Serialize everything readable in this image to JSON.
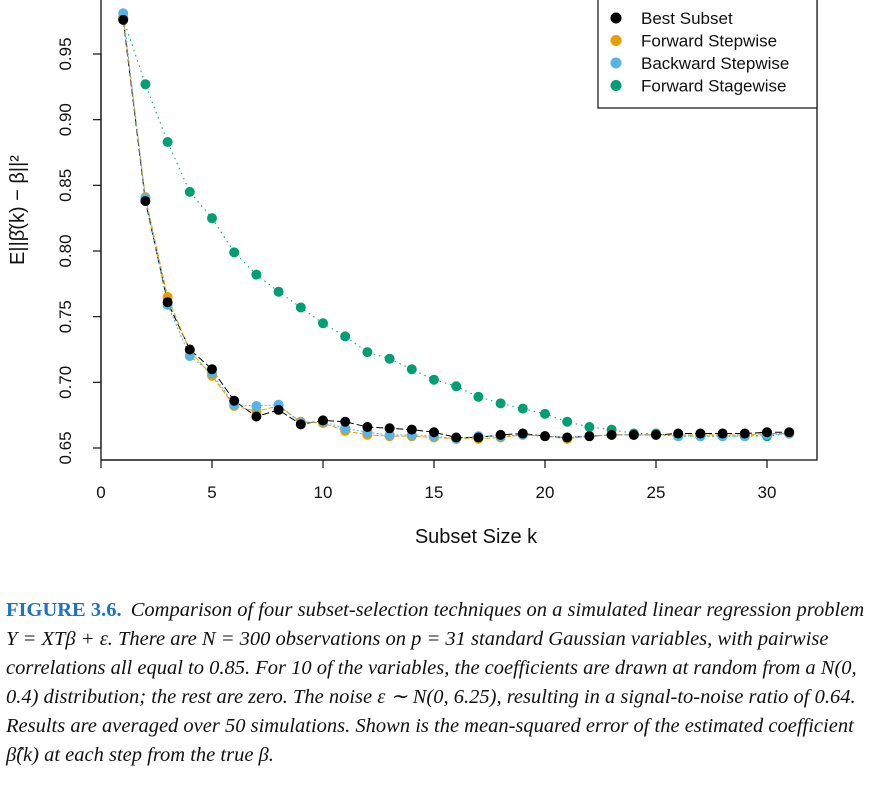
{
  "chart_data": {
    "type": "scatter",
    "xlabel": "Subset Size k",
    "ylabel": "E||β̂(k) − β||²",
    "xlim": [
      0,
      32
    ],
    "ylim": [
      0.65,
      0.98
    ],
    "x_ticks": [
      0,
      5,
      10,
      15,
      20,
      25,
      30
    ],
    "y_ticks": [
      0.65,
      0.7,
      0.75,
      0.8,
      0.85,
      0.9,
      0.95
    ],
    "legend_position": "top-right",
    "grid": false,
    "x": [
      1,
      2,
      3,
      4,
      5,
      6,
      7,
      8,
      9,
      10,
      11,
      12,
      13,
      14,
      15,
      16,
      17,
      18,
      19,
      20,
      21,
      22,
      23,
      24,
      25,
      26,
      27,
      28,
      29,
      30,
      31
    ],
    "series": [
      {
        "name": "Best Subset",
        "color": "#000000",
        "values": [
          0.976,
          0.838,
          0.761,
          0.725,
          0.71,
          0.686,
          0.674,
          0.679,
          0.668,
          0.671,
          0.67,
          0.666,
          0.665,
          0.664,
          0.662,
          0.658,
          0.658,
          0.66,
          0.661,
          0.659,
          0.658,
          0.659,
          0.66,
          0.66,
          0.66,
          0.661,
          0.661,
          0.661,
          0.661,
          0.662,
          0.662
        ]
      },
      {
        "name": "Forward Stepwise",
        "color": "#e69f00",
        "values": [
          0.978,
          0.841,
          0.765,
          0.724,
          0.705,
          0.682,
          0.678,
          0.682,
          0.67,
          0.669,
          0.663,
          0.66,
          0.659,
          0.659,
          0.658,
          0.657,
          0.657,
          0.658,
          0.66,
          0.659,
          0.657,
          0.659,
          0.66,
          0.66,
          0.66,
          0.66,
          0.66,
          0.66,
          0.66,
          0.661,
          0.661
        ]
      },
      {
        "name": "Backward Stepwise",
        "color": "#56b4e9",
        "values": [
          0.981,
          0.84,
          0.759,
          0.72,
          0.707,
          0.683,
          0.682,
          0.683,
          0.669,
          0.67,
          0.665,
          0.662,
          0.66,
          0.66,
          0.659,
          0.657,
          0.659,
          0.659,
          0.66,
          0.659,
          0.658,
          0.659,
          0.66,
          0.66,
          0.66,
          0.659,
          0.659,
          0.659,
          0.659,
          0.66,
          0.661
        ]
      },
      {
        "name": "Forward Stagewise",
        "color": "#009e73",
        "values": [
          0.977,
          0.927,
          0.883,
          0.845,
          0.825,
          0.799,
          0.782,
          0.769,
          0.757,
          0.745,
          0.735,
          0.723,
          0.718,
          0.71,
          0.702,
          0.697,
          0.689,
          0.684,
          0.68,
          0.676,
          0.67,
          0.666,
          0.664,
          0.661,
          0.661,
          0.659,
          0.659,
          0.659,
          0.659,
          0.659,
          0.661
        ]
      }
    ]
  },
  "caption": {
    "label": "FIGURE 3.6.",
    "text": "Comparison of four subset-selection techniques on a simulated linear regression problem Y = XTβ + ε. There are N = 300 observations on p = 31 standard Gaussian variables, with pairwise correlations all equal to 0.85. For 10 of the variables, the coefficients are drawn at random from a N(0, 0.4) distribution; the rest are zero. The noise ε ∼ N(0, 6.25), resulting in a signal-to-noise ratio of 0.64. Results are averaged over 50 simulations. Shown is the mean-squared error of the estimated coefficient β̂(k) at each step from the true β."
  }
}
